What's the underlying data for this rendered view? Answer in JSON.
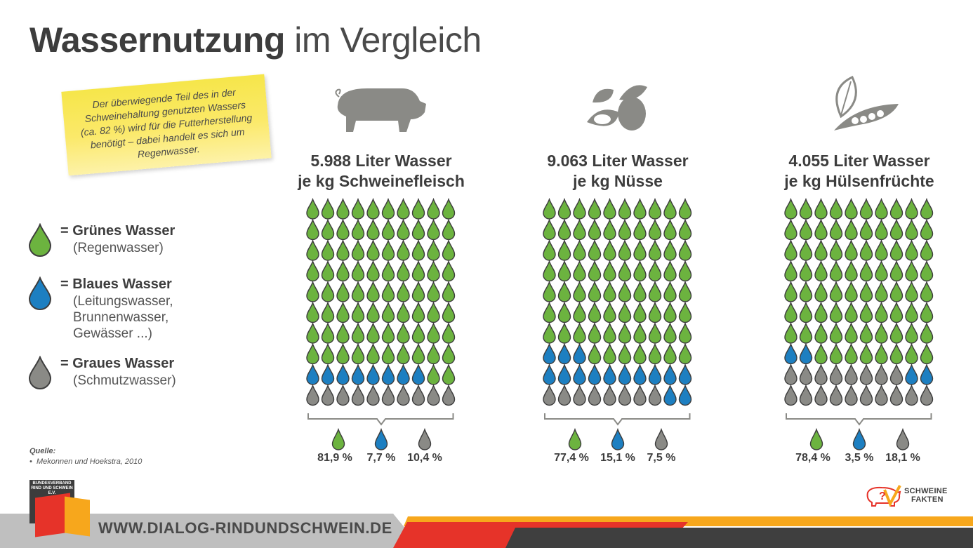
{
  "title": {
    "bold": "Wassernutzung",
    "light": "im Vergleich"
  },
  "note": "Der überwiegende Teil des in der Schweinehaltung genutzten Wassers (ca. 82 %) wird für die Futterherstellung benötigt – dabei handelt es sich um Regenwasser.",
  "legend": [
    {
      "name": "= Grünes Wasser",
      "desc": "(Regenwasser)",
      "color": "#6cb33f"
    },
    {
      "name": "= Blaues Wasser",
      "desc": "(Leitungswasser,\nBrunnenwasser,\nGewässer ...)",
      "color": "#1d7fc1"
    },
    {
      "name": "= Graues Wasser",
      "desc": "(Schmutzwasser)",
      "color": "#8a8a86"
    }
  ],
  "source": {
    "label": "Quelle:",
    "item": "Mekonnen und Hoekstra, 2010"
  },
  "footer": {
    "url": "WWW.DIALOG-RINDUNDSCHWEIN.DE",
    "org": "BUNDESVERBAND RIND UND SCHWEIN E.V.",
    "brand_line1": "SCHWEINE",
    "brand_line2": "FAKTEN"
  },
  "colors": {
    "green": "#6cb33f",
    "blue": "#1d7fc1",
    "grey": "#8a8a86",
    "yellow_note": "#f6e64a",
    "orange": "#f7a71c",
    "red": "#e63329"
  },
  "chart_data": [
    {
      "type": "pictogram",
      "icon": "pig-icon",
      "title_line1": "5.988 Liter Wasser",
      "title_line2": "je kg Schweinefleisch",
      "total_liters": 5988,
      "unit": "Liter Wasser je kg",
      "categories": [
        "Grünes Wasser",
        "Blaues Wasser",
        "Graues Wasser"
      ],
      "values": [
        81.9,
        7.7,
        10.4
      ],
      "labels": [
        "81,9 %",
        "7,7 %",
        "10,4 %"
      ],
      "drops": {
        "green": 82,
        "blue": 8,
        "grey": 10
      }
    },
    {
      "type": "pictogram",
      "icon": "nuts-icon",
      "title_line1": "9.063 Liter Wasser",
      "title_line2": "je kg Nüsse",
      "total_liters": 9063,
      "unit": "Liter Wasser je kg",
      "categories": [
        "Grünes Wasser",
        "Blaues Wasser",
        "Graues Wasser"
      ],
      "values": [
        77.4,
        15.1,
        7.5
      ],
      "labels": [
        "77,4 %",
        "15,1 %",
        "7,5 %"
      ],
      "drops": {
        "green": 77,
        "blue": 15,
        "grey": 8
      }
    },
    {
      "type": "pictogram",
      "icon": "peapod-icon",
      "title_line1": "4.055 Liter Wasser",
      "title_line2": "je kg Hülsenfrüchte",
      "total_liters": 4055,
      "unit": "Liter Wasser je kg",
      "categories": [
        "Grünes Wasser",
        "Blaues Wasser",
        "Graues Wasser"
      ],
      "values": [
        78.4,
        3.5,
        18.1
      ],
      "labels": [
        "78,4 %",
        "3,5 %",
        "18,1 %"
      ],
      "drops": {
        "green": 78,
        "blue": 4,
        "grey": 18
      }
    }
  ]
}
